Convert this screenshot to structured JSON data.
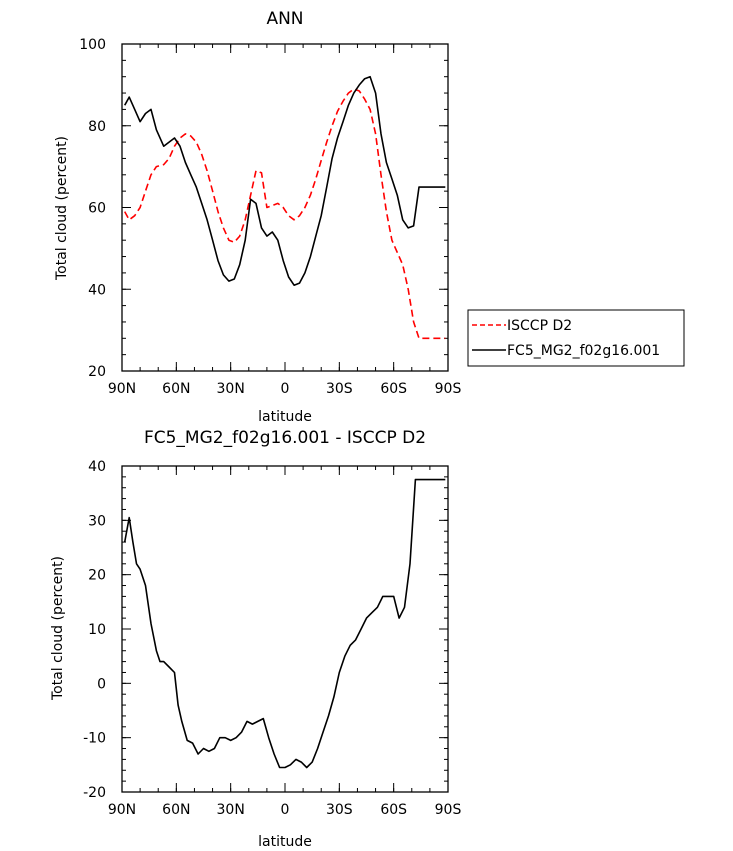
{
  "chart_data": [
    {
      "type": "line",
      "title": "ANN",
      "xlabel": "latitude",
      "ylabel": "Total cloud (percent)",
      "xlim": [
        90,
        -90
      ],
      "ylim": [
        20,
        100
      ],
      "x_ticks": [
        90,
        60,
        30,
        0,
        -30,
        -60,
        -90
      ],
      "x_tick_labels": [
        "90N",
        "60N",
        "30N",
        "0",
        "30S",
        "60S",
        "90S"
      ],
      "y_ticks": [
        20,
        40,
        60,
        80,
        100
      ],
      "y_tick_labels": [
        "20",
        "40",
        "60",
        "80",
        "100"
      ],
      "legend_position": "right",
      "series": [
        {
          "name": "ISCCP D2",
          "color": "#ff0000",
          "dash": true,
          "x": [
            88.5,
            86,
            83,
            80,
            77,
            74,
            71,
            67,
            64,
            61,
            58,
            55,
            52,
            49,
            46,
            43,
            40,
            37,
            34,
            31,
            28,
            25,
            22,
            19,
            16,
            13,
            10,
            7,
            4,
            1,
            -2,
            -5,
            -8,
            -11,
            -14,
            -17,
            -20,
            -23,
            -26,
            -29,
            -32,
            -35,
            -38,
            -41,
            -44,
            -47,
            -50,
            -53,
            -56,
            -59,
            -62,
            -65,
            -68,
            -71,
            -74,
            -77,
            -80,
            -83,
            -86,
            -88.5
          ],
          "y": [
            59,
            57,
            58,
            60,
            64,
            68,
            70,
            70.5,
            72,
            75,
            77,
            78,
            77.5,
            76,
            73,
            69,
            64,
            59,
            55,
            52,
            51.5,
            53,
            57,
            63,
            69,
            68.5,
            60,
            60.5,
            61,
            60,
            58,
            57,
            58,
            60,
            63,
            67,
            71.5,
            76,
            80,
            83.5,
            86,
            88,
            89,
            88.5,
            86.5,
            84,
            78,
            68,
            59,
            52,
            49,
            46,
            40,
            32,
            28,
            28,
            28,
            28,
            28,
            28
          ]
        },
        {
          "name": "FC5_MG2_f02g16.001",
          "color": "#000000",
          "dash": false,
          "x": [
            88.5,
            86,
            83,
            80,
            77,
            74,
            71,
            67,
            64,
            61,
            58,
            55,
            52,
            49,
            46,
            43,
            40,
            37,
            34,
            31,
            28,
            25,
            22,
            19,
            16,
            13,
            10,
            7,
            4,
            1,
            -2,
            -5,
            -8,
            -11,
            -14,
            -17,
            -20,
            -23,
            -26,
            -29,
            -32,
            -35,
            -38,
            -41,
            -44,
            -47,
            -50,
            -53,
            -56,
            -59,
            -62,
            -65,
            -68,
            -71,
            -74,
            -77,
            -80,
            -83,
            -86,
            -88.5
          ],
          "y": [
            85,
            87,
            84,
            81,
            83,
            84,
            79,
            75,
            76,
            77,
            75,
            71,
            68,
            65,
            61,
            57,
            52,
            47,
            43.5,
            42,
            42.5,
            46,
            52,
            62,
            61,
            55,
            53,
            54,
            52,
            47,
            43,
            41,
            41.5,
            44,
            48,
            53,
            58,
            65,
            72,
            77,
            81,
            85,
            88,
            90,
            91.5,
            92,
            88,
            78,
            71,
            67,
            63,
            57,
            55,
            55.5,
            65,
            65,
            65,
            65,
            65,
            65
          ]
        }
      ]
    },
    {
      "type": "line",
      "title": "FC5_MG2_f02g16.001 - ISCCP D2",
      "xlabel": "latitude",
      "ylabel": "Total cloud (percent)",
      "xlim": [
        90,
        -90
      ],
      "ylim": [
        -20,
        40
      ],
      "x_ticks": [
        90,
        60,
        30,
        0,
        -30,
        -60,
        -90
      ],
      "x_tick_labels": [
        "90N",
        "60N",
        "30N",
        "0",
        "30S",
        "60S",
        "90S"
      ],
      "y_ticks": [
        -20,
        -10,
        0,
        10,
        20,
        30,
        40
      ],
      "y_tick_labels": [
        "-20",
        "-10",
        "0",
        "10",
        "20",
        "30",
        "40"
      ],
      "series": [
        {
          "color": "#000000",
          "x": [
            88.5,
            86,
            84,
            82,
            80,
            77,
            74,
            71,
            69,
            67,
            64,
            61,
            59,
            57,
            54,
            51,
            48,
            45,
            42,
            39,
            36,
            33,
            30,
            27,
            24,
            21,
            18,
            15,
            12,
            9,
            6,
            3,
            0,
            -3,
            -6,
            -9,
            -12,
            -15,
            -18,
            -21,
            -24,
            -27,
            -30,
            -33,
            -36,
            -39,
            -42,
            -45,
            -48,
            -51,
            -54,
            -57,
            -60,
            -63,
            -66,
            -69,
            -72,
            -75,
            -77,
            -79,
            -81,
            -83,
            -85,
            -87,
            -88.5
          ],
          "y": [
            26,
            30.5,
            26,
            22,
            21,
            18,
            11,
            6,
            4,
            4,
            3,
            2,
            -4,
            -7,
            -10.5,
            -11,
            -13,
            -12,
            -12.5,
            -12,
            -10,
            -10,
            -10.5,
            -10,
            -9,
            -7,
            -7.5,
            -7,
            -6.5,
            -10,
            -13,
            -15.5,
            -15.5,
            -15,
            -14,
            -14.5,
            -15.5,
            -14.5,
            -12,
            -9,
            -6,
            -2.5,
            2,
            5,
            7,
            8,
            10,
            12,
            13,
            14,
            16,
            16,
            16,
            12,
            14,
            22,
            37.5,
            37.5,
            37.5,
            37.5,
            37.5,
            37.5,
            37.5,
            37.5,
            37.5
          ]
        }
      ]
    }
  ]
}
